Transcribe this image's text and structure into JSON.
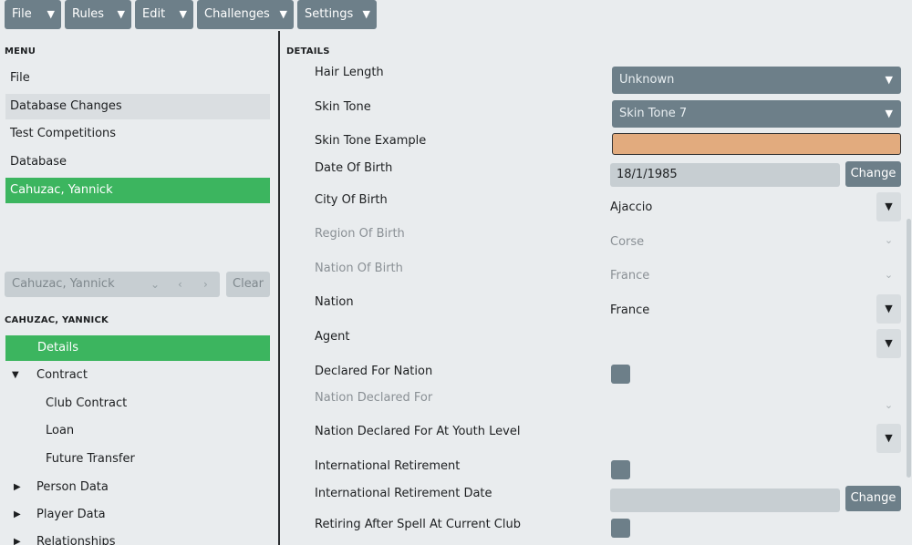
{
  "toolbar": {
    "file": "File",
    "rules": "Rules",
    "edit": "Edit",
    "challenges": "Challenges",
    "settings": "Settings"
  },
  "menu": {
    "header": "MENU",
    "items": [
      "File",
      "Database Changes",
      "Test Competitions",
      "Database",
      "Cahuzac, Yannick"
    ]
  },
  "selector": {
    "value": "Cahuzac, Yannick",
    "clear": "Clear"
  },
  "person": {
    "header": "CAHUZAC, YANNICK",
    "tree": [
      "Details",
      "Contract",
      "Club Contract",
      "Loan",
      "Future Transfer",
      "Person Data",
      "Player Data",
      "Relationships"
    ]
  },
  "details": {
    "header": "DETAILS",
    "labels": {
      "hair_length": "Hair Length",
      "skin_tone": "Skin Tone",
      "skin_tone_example": "Skin Tone Example",
      "dob": "Date Of Birth",
      "city": "City Of Birth",
      "region": "Region Of Birth",
      "nation_birth": "Nation Of Birth",
      "nation": "Nation",
      "agent": "Agent",
      "declared": "Declared For Nation",
      "nation_declared": "Nation Declared For",
      "nation_declared_youth": "Nation Declared For At Youth Level",
      "intl_retirement": "International Retirement",
      "intl_retirement_date": "International Retirement Date",
      "retiring": "Retiring After Spell At Current Club"
    },
    "values": {
      "hair_length": "Unknown",
      "skin_tone": "Skin Tone 7",
      "skin_tone_color": "#e2ab7e",
      "dob": "18/1/1985",
      "city": "Ajaccio",
      "region": "Corse",
      "nation_birth": "France",
      "nation": "France",
      "intl_retirement_date": ""
    },
    "change_label": "Change"
  },
  "colors": {
    "accent": "#3cb55f",
    "button": "#6d7f89",
    "background": "#e9ecee"
  }
}
